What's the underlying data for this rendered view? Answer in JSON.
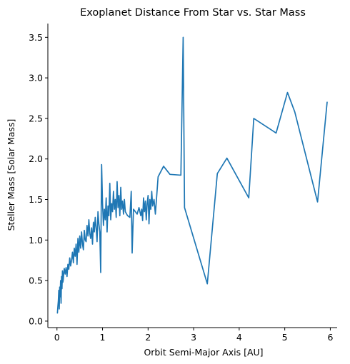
{
  "chart_data": {
    "type": "line",
    "title": "Exoplanet Distance From Star vs. Star Mass",
    "xlabel": "Orbit Semi-Major Axis [AU]",
    "ylabel": "Steller Mass [Solar Mass]",
    "xlim": [
      -0.2,
      6.15
    ],
    "ylim": [
      -0.08,
      3.67
    ],
    "xticks": [
      0,
      1,
      2,
      3,
      4,
      5,
      6
    ],
    "xtick_labels": [
      "0",
      "1",
      "2",
      "3",
      "4",
      "5",
      "6"
    ],
    "yticks": [
      0.0,
      0.5,
      1.0,
      1.5,
      2.0,
      2.5,
      3.0,
      3.5
    ],
    "ytick_labels": [
      "0.0",
      "0.5",
      "1.0",
      "1.5",
      "2.0",
      "2.5",
      "3.0",
      "3.5"
    ],
    "grid": false,
    "legend": "none",
    "color": "#1f77b4",
    "series": [
      {
        "x": [
          0.01,
          0.02,
          0.03,
          0.04,
          0.05,
          0.06,
          0.07,
          0.08,
          0.09,
          0.1,
          0.11,
          0.12,
          0.13,
          0.14,
          0.15,
          0.16,
          0.18,
          0.2,
          0.22,
          0.24,
          0.26,
          0.28,
          0.3,
          0.32,
          0.34,
          0.36,
          0.38,
          0.4,
          0.42,
          0.44,
          0.46,
          0.48,
          0.5,
          0.52,
          0.54,
          0.56,
          0.58,
          0.6,
          0.62,
          0.64,
          0.66,
          0.68,
          0.7,
          0.72,
          0.74,
          0.76,
          0.78,
          0.8,
          0.82,
          0.84,
          0.86,
          0.88,
          0.9,
          0.92,
          0.94,
          0.96,
          0.97,
          0.98,
          1.0,
          1.02,
          1.04,
          1.06,
          1.08,
          1.1,
          1.12,
          1.14,
          1.16,
          1.18,
          1.2,
          1.22,
          1.24,
          1.26,
          1.28,
          1.3,
          1.32,
          1.34,
          1.36,
          1.38,
          1.4,
          1.42,
          1.44,
          1.46,
          1.48,
          1.5,
          1.55,
          1.6,
          1.63,
          1.65,
          1.68,
          1.72,
          1.76,
          1.8,
          1.84,
          1.86,
          1.88,
          1.9,
          1.92,
          1.94,
          1.96,
          1.98,
          2.0,
          2.02,
          2.04,
          2.06,
          2.08,
          2.1,
          2.13,
          2.16,
          2.22,
          2.34,
          2.48,
          2.72,
          2.77,
          2.8,
          3.3,
          3.52,
          3.73,
          4.21,
          4.32,
          4.81,
          5.06,
          5.22,
          5.72,
          5.93
        ],
        "y": [
          0.1,
          0.18,
          0.25,
          0.38,
          0.15,
          0.42,
          0.3,
          0.5,
          0.22,
          0.55,
          0.4,
          0.62,
          0.48,
          0.52,
          0.6,
          0.65,
          0.58,
          0.66,
          0.55,
          0.7,
          0.64,
          0.78,
          0.68,
          0.75,
          0.85,
          0.72,
          0.9,
          0.8,
          0.95,
          0.7,
          1.02,
          0.85,
          1.05,
          0.9,
          1.1,
          0.95,
          0.88,
          1.12,
          1.0,
          0.98,
          1.18,
          1.05,
          1.25,
          1.08,
          1.02,
          1.15,
          0.95,
          1.22,
          1.1,
          1.28,
          1.15,
          0.98,
          1.35,
          1.2,
          1.1,
          0.6,
          1.3,
          1.93,
          1.45,
          1.18,
          1.38,
          1.25,
          1.52,
          1.1,
          1.42,
          1.3,
          1.7,
          1.25,
          1.45,
          1.35,
          1.6,
          1.38,
          1.5,
          1.28,
          1.72,
          1.4,
          1.55,
          1.3,
          1.65,
          1.38,
          1.48,
          1.32,
          1.5,
          1.35,
          1.3,
          1.28,
          1.6,
          0.84,
          1.38,
          1.35,
          1.32,
          1.4,
          1.3,
          1.38,
          1.24,
          1.52,
          1.35,
          1.48,
          1.25,
          1.45,
          1.55,
          1.2,
          1.5,
          1.38,
          1.6,
          1.42,
          1.5,
          1.32,
          1.78,
          1.91,
          1.81,
          1.8,
          3.5,
          1.4,
          0.46,
          1.82,
          2.01,
          1.52,
          2.5,
          2.32,
          2.82,
          2.58,
          1.47,
          2.7
        ]
      }
    ]
  }
}
